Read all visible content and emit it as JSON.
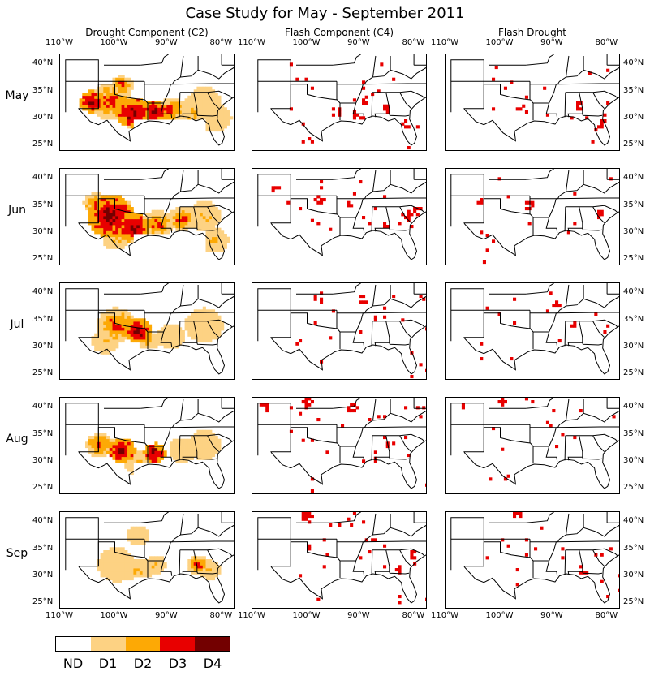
{
  "title": "Case Study for May - September 2011",
  "columns": [
    "Drought Component (C2)",
    "Flash Component (C4)",
    "Flash Drought"
  ],
  "rows": [
    "May",
    "Jun",
    "Jul",
    "Aug",
    "Sep"
  ],
  "lon_ticks": [
    "110°W",
    "100°W",
    "90°W",
    "80°W"
  ],
  "lat_ticks": [
    "40°N",
    "35°N",
    "30°N",
    "25°N"
  ],
  "legend": {
    "labels": [
      "ND",
      "D1",
      "D2",
      "D3",
      "D4"
    ],
    "colors": [
      "#ffffff",
      "#fdd283",
      "#fda905",
      "#e80000",
      "#730000"
    ]
  },
  "chart_data": {
    "type": "heatmap",
    "map_extent": {
      "lon": [
        -110,
        -78
      ],
      "lat": [
        24,
        42
      ]
    },
    "category_scale": [
      "ND",
      "D1",
      "D2",
      "D3",
      "D4"
    ],
    "drought_component_dominant": {
      "May": "D3-D4 across Texas, Oklahoma and Gulf Coast (Louisiana); D1-D2 across the southeast and Florida",
      "Jun": "D3-D4 widespread in Texas/Oklahoma/Gulf Coast; D1-D2 in southeast",
      "Jul": "D2-D4 in Texas/Oklahoma; scattered D1-D2 in southeast",
      "Aug": "D3-D4 central Texas and Louisiana; D1 elsewhere",
      "Sep": "D1-D3 Texas; D2-D4 in Georgia/Alabama"
    }
  }
}
